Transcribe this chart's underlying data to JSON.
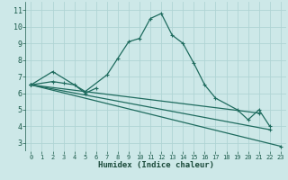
{
  "xlabel": "Humidex (Indice chaleur)",
  "bg_color": "#cde8e8",
  "grid_color": "#b0d4d4",
  "line_color": "#1e6b5e",
  "xlim": [
    -0.5,
    23.5
  ],
  "ylim": [
    2.5,
    11.5
  ],
  "xticks": [
    0,
    1,
    2,
    3,
    4,
    5,
    6,
    7,
    8,
    9,
    10,
    11,
    12,
    13,
    14,
    15,
    16,
    17,
    18,
    19,
    20,
    21,
    22,
    23
  ],
  "yticks": [
    3,
    4,
    5,
    6,
    7,
    8,
    9,
    10,
    11
  ],
  "line1_x": [
    0,
    2,
    5,
    7,
    8,
    9,
    10,
    11,
    12,
    13,
    14,
    15,
    16,
    17,
    19,
    20,
    21,
    22
  ],
  "line1_y": [
    6.5,
    7.3,
    6.1,
    7.1,
    8.1,
    9.1,
    9.3,
    10.5,
    10.8,
    9.5,
    9.0,
    7.8,
    6.5,
    5.7,
    5.0,
    4.4,
    5.0,
    4.0
  ],
  "line2_x": [
    0,
    2,
    3,
    4,
    5,
    6
  ],
  "line2_y": [
    6.5,
    6.7,
    6.6,
    6.5,
    6.0,
    6.3
  ],
  "line3_x": [
    0,
    23
  ],
  "line3_y": [
    6.5,
    2.8
  ],
  "line4_x": [
    0,
    22
  ],
  "line4_y": [
    6.5,
    3.8
  ],
  "line5_x": [
    0,
    21
  ],
  "line5_y": [
    6.5,
    4.8
  ]
}
